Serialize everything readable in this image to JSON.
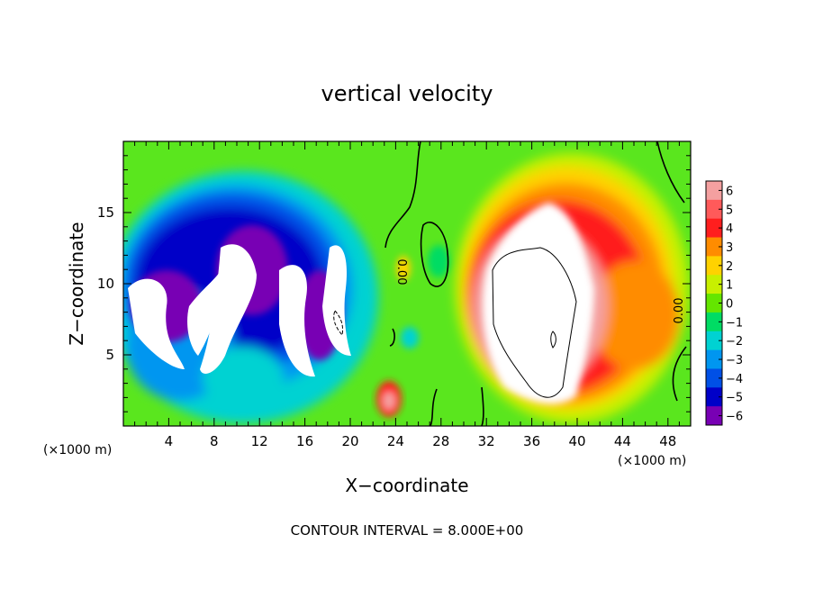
{
  "chart_data": {
    "type": "heatmap",
    "title": "vertical velocity",
    "xlabel": "X−coordinate",
    "ylabel": "Z−coordinate",
    "x_unit_label_left": "(×1000 m)",
    "x_unit_label_right": "(×1000 m)",
    "footer": "CONTOUR INTERVAL = 8.000E+00",
    "xlim": [
      0,
      50
    ],
    "ylim": [
      0,
      20
    ],
    "x_ticks": [
      4,
      8,
      12,
      16,
      20,
      24,
      28,
      32,
      36,
      40,
      44,
      48
    ],
    "y_ticks": [
      5,
      10,
      15
    ],
    "contour_labels": [
      "0.00",
      "0.00"
    ],
    "colorbar": {
      "labels": [
        "6",
        "5",
        "4",
        "3",
        "2",
        "1",
        "0",
        "−1",
        "−2",
        "−3",
        "−4",
        "−5",
        "−6"
      ],
      "values": [
        6,
        5,
        4,
        3,
        2,
        1,
        0,
        -1,
        -2,
        -3,
        -4,
        -5,
        -6
      ],
      "colors": [
        "#f4a0a0",
        "#ff5a5a",
        "#ff1e1e",
        "#ff8c00",
        "#ffd200",
        "#c8f000",
        "#64e600",
        "#00dc64",
        "#00d2d2",
        "#0096f0",
        "#0050e6",
        "#0000c8",
        "#7800b4"
      ]
    },
    "features": [
      {
        "kind": "downdraft",
        "x": [
          1,
          19
        ],
        "z": [
          3,
          17.5
        ],
        "min_value": -6
      },
      {
        "kind": "updraft",
        "x": [
          30,
          48
        ],
        "z": [
          0.5,
          17.5
        ],
        "max_value": 6
      },
      {
        "kind": "small-updraft",
        "x": 23.2,
        "z": 1.8,
        "max_value": 5
      }
    ]
  }
}
